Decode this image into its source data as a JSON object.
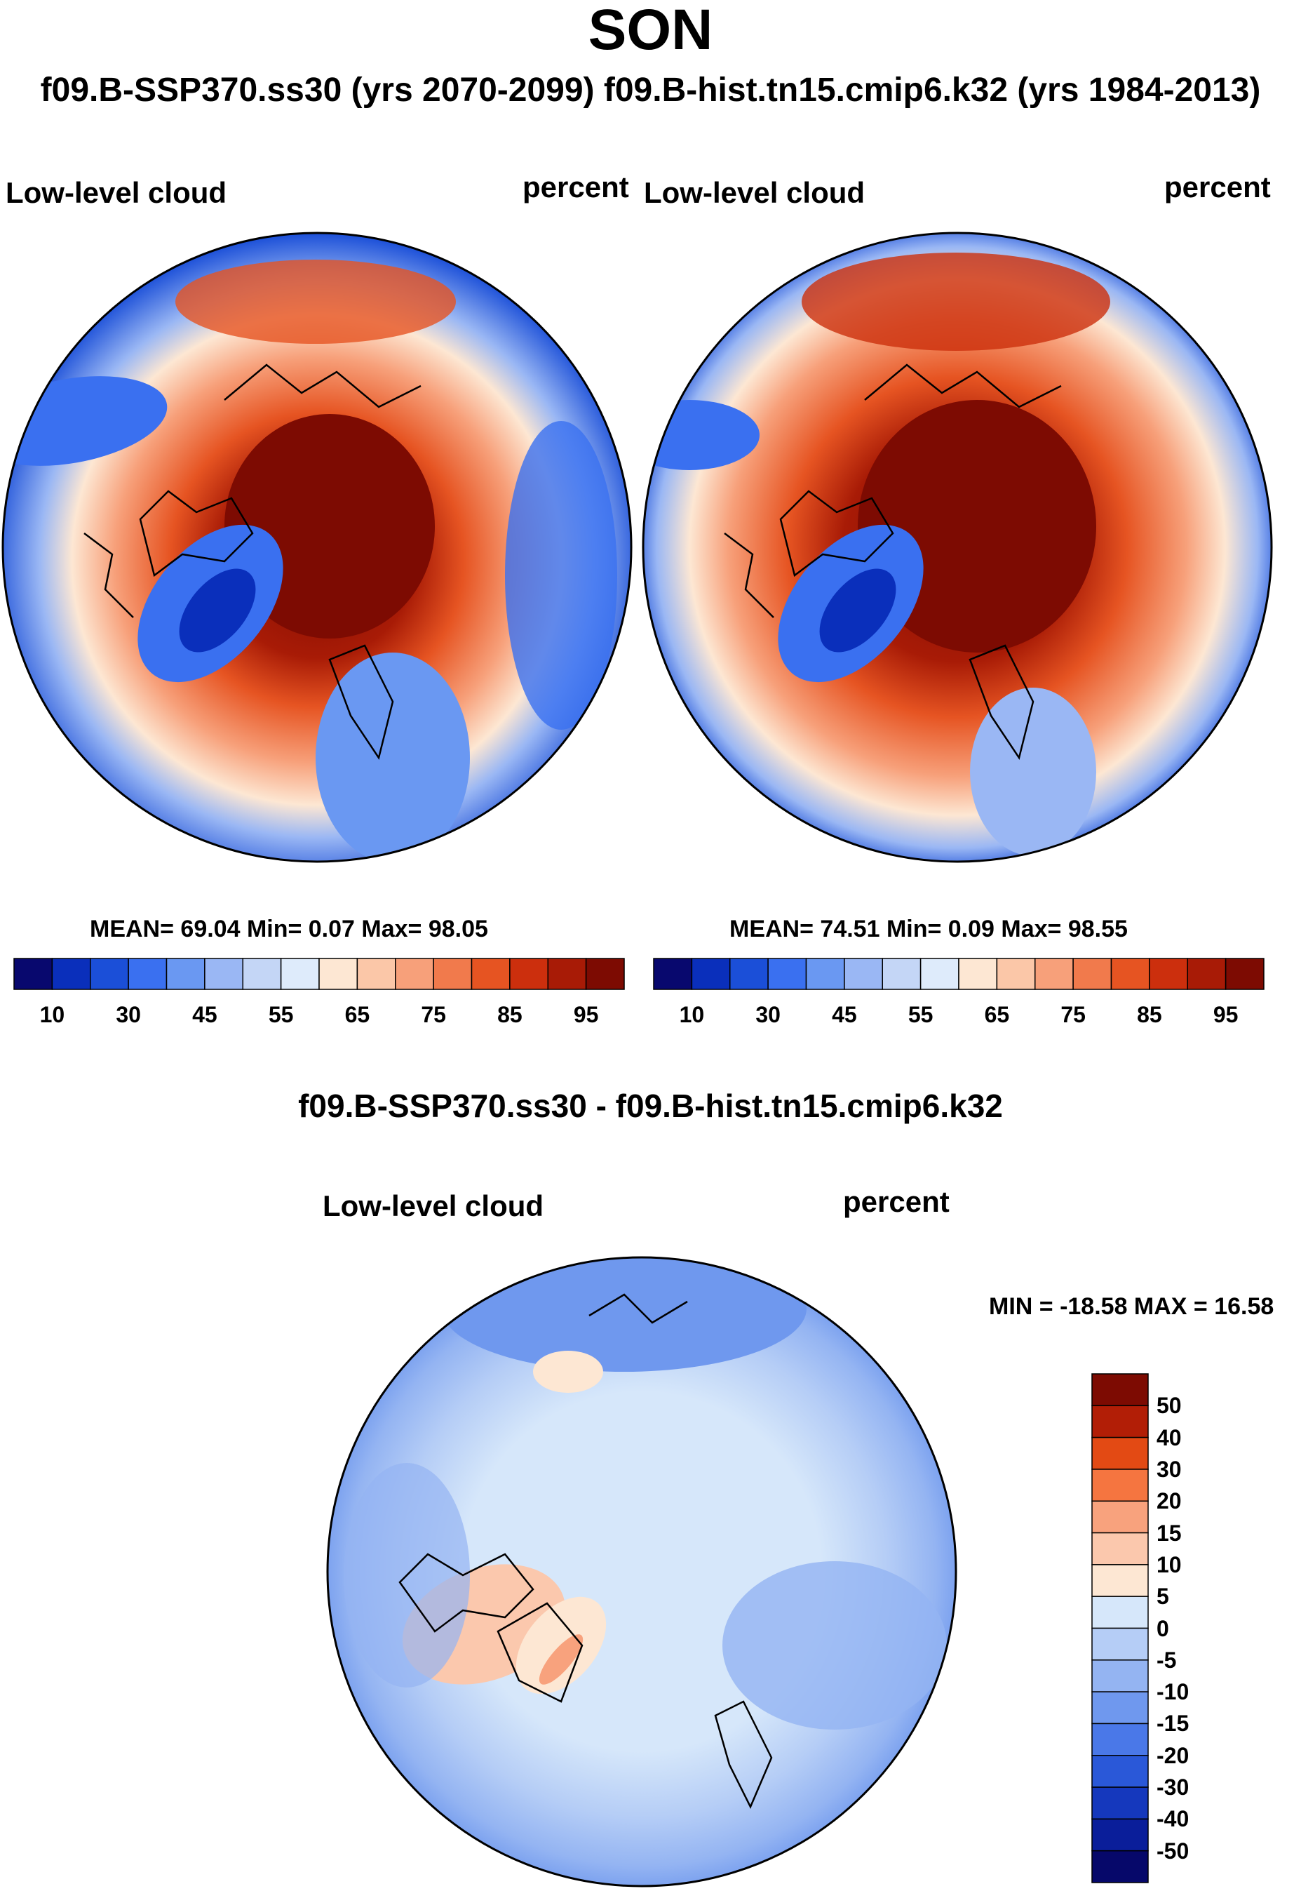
{
  "title": "SON",
  "subtitle": "f09.B-SSP370.ss30 (yrs 2070-2099)  f09.B-hist.tn15.cmip6.k32 (yrs 1984-2013)",
  "panels": [
    {
      "variable": "Low-level cloud",
      "units": "percent",
      "stats": "MEAN= 69.04  Min=   0.07  Max=  98.05",
      "mean": 69.04,
      "min": 0.07,
      "max": 98.05
    },
    {
      "variable": "Low-level cloud",
      "units": "percent",
      "stats": "MEAN= 74.51  Min=   0.09  Max=  98.55",
      "mean": 74.51,
      "min": 0.09,
      "max": 98.55
    }
  ],
  "difference": {
    "title": "f09.B-SSP370.ss30 - f09.B-hist.tn15.cmip6.k32",
    "variable": "Low-level cloud",
    "units": "percent",
    "stats": "MIN = -18.58 MAX =  16.58",
    "min": -18.58,
    "max": 16.58
  },
  "colorbar_abs": {
    "colors": [
      "#08086e",
      "#0a2fbb",
      "#1b4fd8",
      "#3a70f0",
      "#6a98f2",
      "#9ab7f4",
      "#c4d6f6",
      "#deebfb",
      "#fde7d3",
      "#fbc7a8",
      "#f7a07a",
      "#f17a4c",
      "#e65422",
      "#cc2f0d",
      "#a81b06",
      "#7d0b02"
    ],
    "labels": [
      "10",
      "30",
      "45",
      "55",
      "65",
      "75",
      "85",
      "95"
    ]
  },
  "colorbar_diff": {
    "colors": [
      "#7d0b02",
      "#b21e06",
      "#e34a14",
      "#f57540",
      "#f8a27d",
      "#fbc8ad",
      "#fde7d3",
      "#d6e7fa",
      "#b5cdf6",
      "#94b4f2",
      "#6f98ee",
      "#4a78e8",
      "#2a58d8",
      "#1538bd",
      "#0a1e9a",
      "#06086a"
    ],
    "labels": [
      "50",
      "40",
      "30",
      "20",
      "15",
      "10",
      "5",
      "0",
      "-5",
      "-10",
      "-15",
      "-20",
      "-30",
      "-40",
      "-50"
    ]
  }
}
